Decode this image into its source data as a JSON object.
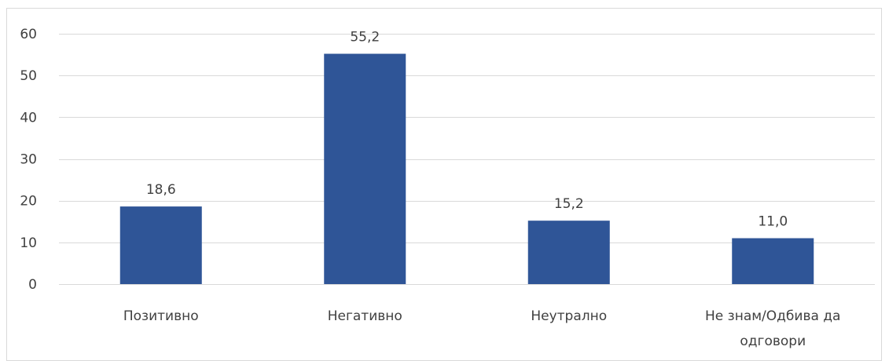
{
  "chart_data": {
    "type": "bar",
    "title": "",
    "xlabel": "",
    "ylabel": "",
    "categories": [
      "Позитивно",
      "Негативно",
      "Неутрално",
      "Не знам/Одбива да одговори"
    ],
    "category_lines": [
      [
        "Позитивно"
      ],
      [
        "Негативно"
      ],
      [
        "Неутрално"
      ],
      [
        "Не знам/Одбива да",
        "одговори"
      ]
    ],
    "values": [
      18.6,
      55.2,
      15.2,
      11.0
    ],
    "data_labels": [
      "18,6",
      "55,2",
      "15,2",
      "11,0"
    ],
    "ylim": [
      0,
      60
    ],
    "yticks": [
      0,
      10,
      20,
      30,
      40,
      50,
      60
    ],
    "grid": true,
    "legend": "none",
    "bar_color": "#2f5597"
  }
}
